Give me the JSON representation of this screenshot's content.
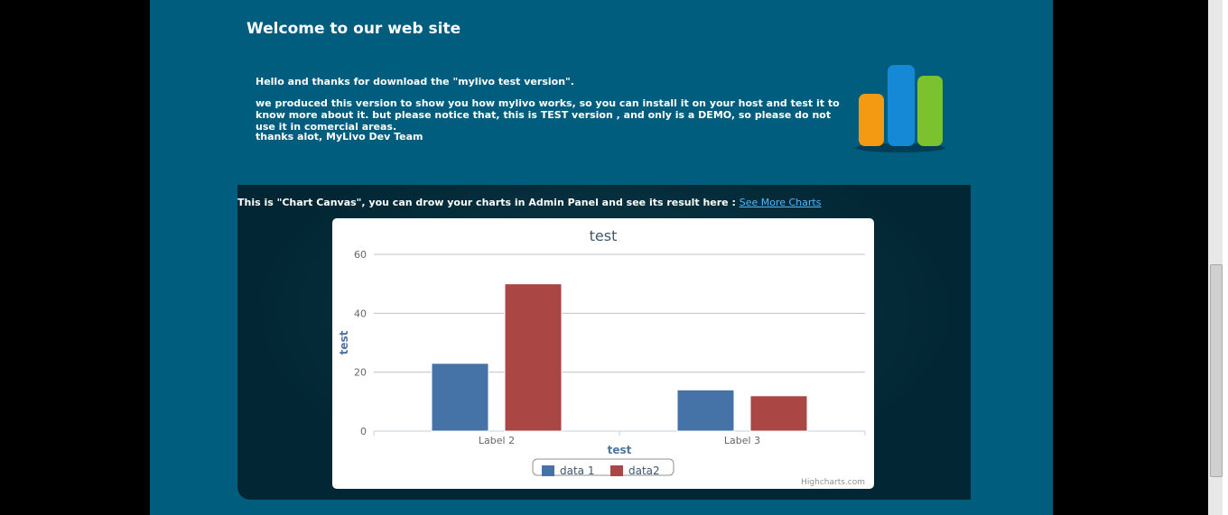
{
  "header": {
    "title": "Welcome to our web site"
  },
  "intro": {
    "paragraphs": [
      "Hello and thanks for download the \"mylivo test version\".",
      "we produced this version to show you how mylivo works, so you can install it on your host and test it to know more about it. but please notice that, this is TEST version , and only is a DEMO, so please do not use it in comercial areas.",
      "thanks alot, MyLivo Dev Team"
    ]
  },
  "chart_section": {
    "text": "This is \"Chart Canvas\", you can drow your charts in Admin Panel and see its result here :",
    "link": "See More Charts"
  },
  "chart_data": {
    "type": "bar",
    "title": "test",
    "x_label": "test",
    "y_label": "test",
    "categories": [
      "Label 2",
      "Label 3"
    ],
    "series": [
      {
        "name": "data 1",
        "color": "#4572a7",
        "values": [
          23,
          14
        ]
      },
      {
        "name": "data2",
        "color": "#aa4643",
        "values": [
          50,
          12
        ]
      }
    ],
    "ylim": [
      0,
      60
    ],
    "yticks": [
      0,
      20,
      40,
      60
    ],
    "grid": true,
    "credit": "Highcharts.com"
  }
}
